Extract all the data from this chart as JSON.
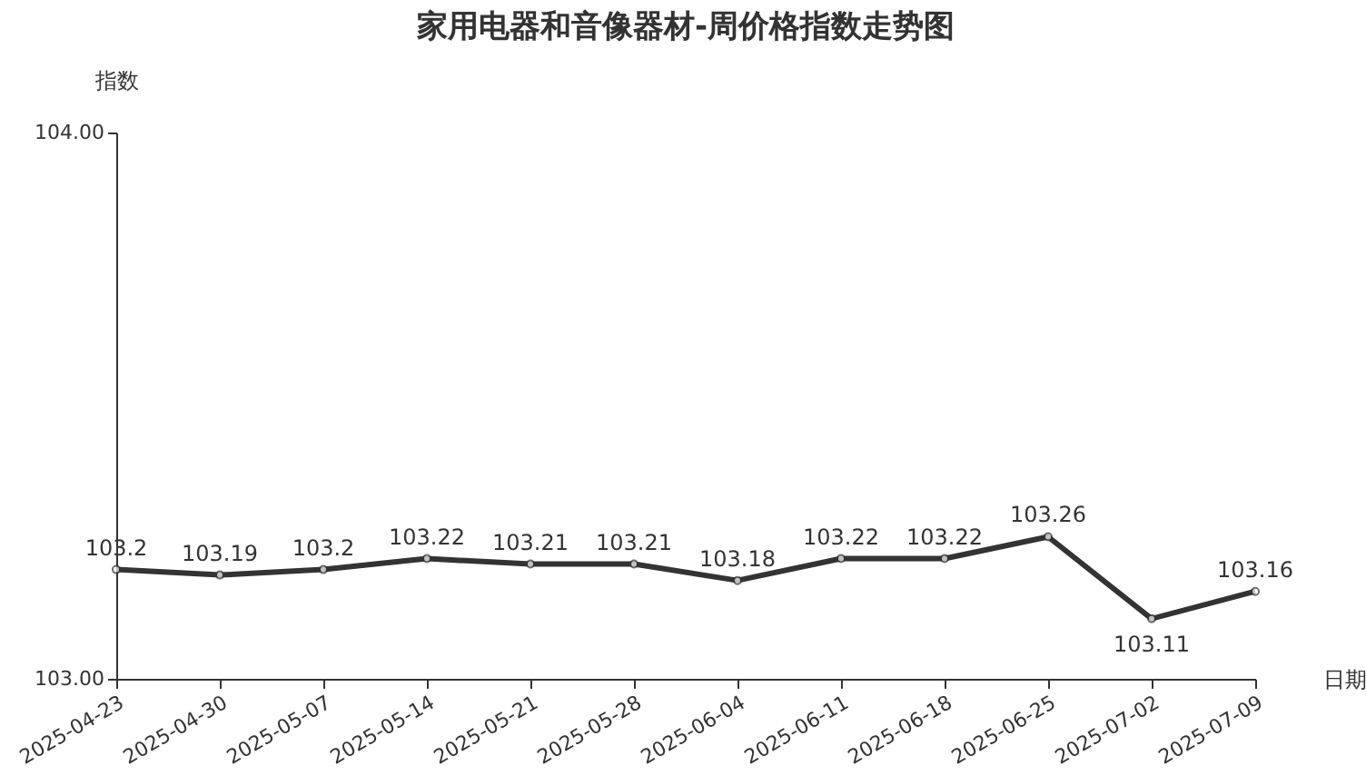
{
  "chart_data": {
    "type": "line",
    "title": "家用电器和音像器材-周价格指数走势图",
    "xlabel": "日期",
    "ylabel": "指数",
    "categories": [
      "2025-04-23",
      "2025-04-30",
      "2025-05-07",
      "2025-05-14",
      "2025-05-21",
      "2025-05-28",
      "2025-06-04",
      "2025-06-11",
      "2025-06-18",
      "2025-06-25",
      "2025-07-02",
      "2025-07-09"
    ],
    "series": [
      {
        "color": "#333333",
        "values": [
          103.2,
          103.19,
          103.2,
          103.22,
          103.21,
          103.21,
          103.18,
          103.22,
          103.22,
          103.26,
          103.11,
          103.16
        ]
      }
    ],
    "ylim": [
      103,
      104
    ],
    "yticks": [
      {
        "value": 103,
        "label": "103.00"
      },
      {
        "value": 104,
        "label": "104.00"
      }
    ],
    "data_labels": true,
    "marker": "circle",
    "line_style": "solid",
    "grid": false
  }
}
